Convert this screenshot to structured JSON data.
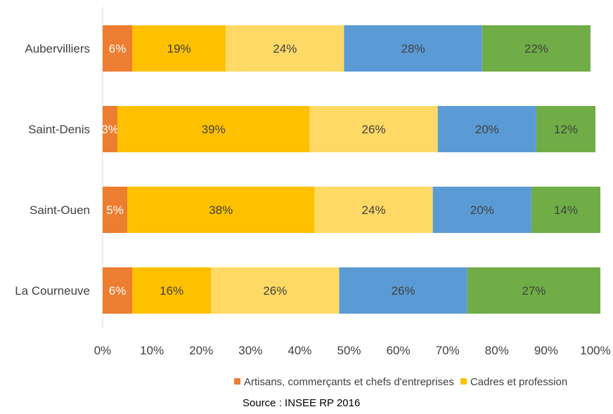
{
  "chart_data": {
    "type": "bar",
    "orientation": "horizontal",
    "stacked": true,
    "categories": [
      "Aubervilliers",
      "Saint-Denis",
      "Saint-Ouen",
      "La Courneuve"
    ],
    "series": [
      {
        "name": "Artisans, commerçants et chefs d'entreprises",
        "color": "#ED7D31",
        "values": [
          6,
          3,
          5,
          6
        ]
      },
      {
        "name": "Cadres et profession",
        "color": "#FFC000",
        "values": [
          19,
          39,
          38,
          16
        ]
      },
      {
        "color": "#FFD966",
        "values": [
          24,
          26,
          24,
          26
        ]
      },
      {
        "color": "#5B9BD5",
        "values": [
          28,
          20,
          20,
          26
        ]
      },
      {
        "color": "#70AD47",
        "values": [
          22,
          12,
          14,
          27
        ]
      }
    ],
    "data_labels": [
      [
        "6%",
        "19%",
        "24%",
        "28%",
        "22%"
      ],
      [
        "3%",
        "39%",
        "26%",
        "20%",
        "12%"
      ],
      [
        "5%",
        "38%",
        "24%",
        "20%",
        "14%"
      ],
      [
        "6%",
        "16%",
        "26%",
        "26%",
        "27%"
      ]
    ],
    "x_ticks": [
      "0%",
      "10%",
      "20%",
      "30%",
      "40%",
      "50%",
      "60%",
      "70%",
      "80%",
      "90%",
      "100%"
    ],
    "xlim": [
      0,
      100
    ],
    "grid": false,
    "legend_position": "bottom"
  },
  "source": "Source : INSEE RP 2016"
}
